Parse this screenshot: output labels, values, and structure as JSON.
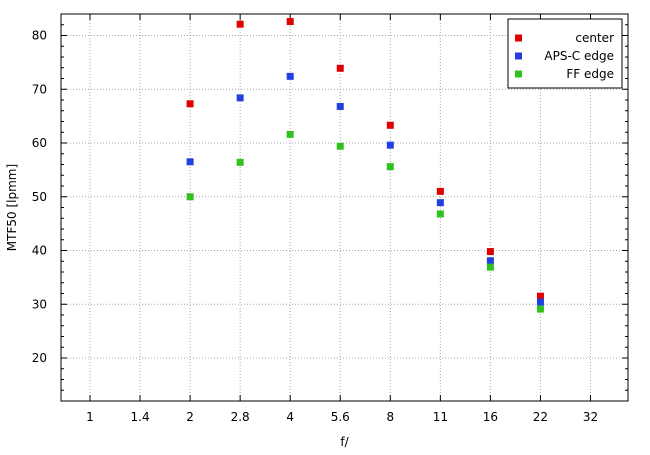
{
  "chart_data": {
    "type": "scatter",
    "title": "",
    "xlabel": "f/",
    "ylabel": "MTF50 [lpmm]",
    "x_scale": "log2",
    "x_ticks": [
      "1",
      "1.4",
      "2",
      "2.8",
      "4",
      "5.6",
      "8",
      "11",
      "16",
      "22",
      "32"
    ],
    "xlim": [
      0.8,
      38
    ],
    "ylim": [
      12,
      84
    ],
    "y_ticks": [
      20,
      30,
      40,
      50,
      60,
      70,
      80
    ],
    "grid": true,
    "legend_position": "top-right",
    "series": [
      {
        "name": "center",
        "color": "#e00000",
        "x": [
          "2",
          "2.8",
          "4",
          "5.6",
          "8",
          "11",
          "16",
          "22"
        ],
        "values": [
          67.3,
          82.1,
          82.6,
          73.9,
          63.3,
          51.0,
          39.8,
          31.5
        ]
      },
      {
        "name": "APS-C edge",
        "color": "#2040e0",
        "x": [
          "2",
          "2.8",
          "4",
          "5.6",
          "8",
          "11",
          "16",
          "22"
        ],
        "values": [
          56.5,
          68.4,
          72.4,
          66.8,
          59.6,
          48.9,
          38.1,
          30.4
        ]
      },
      {
        "name": "FF edge",
        "color": "#30c020",
        "x": [
          "2",
          "2.8",
          "4",
          "5.6",
          "8",
          "11",
          "16",
          "22"
        ],
        "values": [
          50.0,
          56.4,
          61.6,
          59.4,
          55.6,
          46.8,
          36.9,
          29.1
        ]
      }
    ]
  }
}
